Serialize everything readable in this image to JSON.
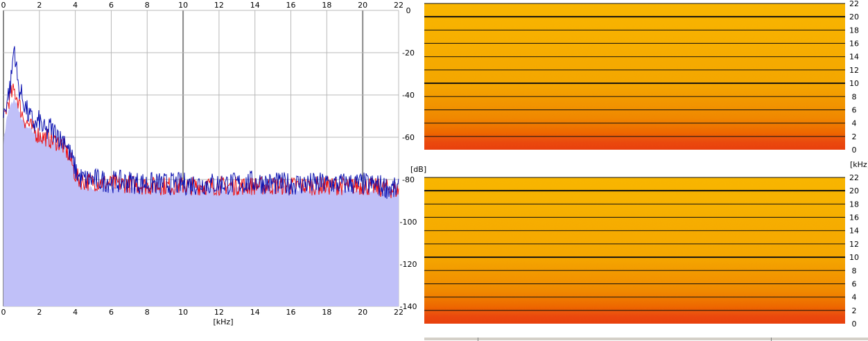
{
  "chart_data": [
    {
      "type": "area",
      "xlabel": "[kHz]",
      "ylabel": "[dB]",
      "xlim": [
        0,
        22
      ],
      "ylim": [
        -140,
        0
      ],
      "x_ticks": [
        "0",
        "2",
        "4",
        "6",
        "8",
        "10",
        "12",
        "14",
        "16",
        "18",
        "20",
        "22"
      ],
      "y_ticks": [
        "0",
        "-20",
        "-40",
        "-60",
        "-80",
        "-100",
        "-120",
        "-140"
      ],
      "grid": true,
      "colors": {
        "fill": "#c0c0f8",
        "series_a": "#ee1010",
        "series_b": "#0a10b0",
        "grid": "#b8b8b8"
      },
      "series": [
        {
          "x": [
            0,
            0.2,
            0.4,
            0.6,
            0.8,
            1.0,
            1.2,
            1.4,
            1.6,
            1.8,
            2.0,
            2.2,
            2.4,
            2.6,
            2.8,
            3.0,
            3.2,
            3.4,
            3.6,
            3.8,
            4.0,
            4.2,
            4.5,
            5,
            6,
            7,
            8,
            9,
            10,
            11,
            12,
            13,
            14,
            15,
            16,
            17,
            18,
            19,
            20,
            21,
            22
          ],
          "y": [
            -52,
            -45,
            -40,
            -38,
            -42,
            -48,
            -52,
            -54,
            -56,
            -58,
            -59,
            -60,
            -60,
            -61,
            -62,
            -62,
            -63,
            -65,
            -68,
            -72,
            -78,
            -80,
            -81,
            -81,
            -82,
            -82,
            -83,
            -83,
            -83,
            -83,
            -83,
            -83,
            -83,
            -83,
            -83,
            -83,
            -83,
            -83,
            -83,
            -84,
            -85
          ]
        },
        {
          "x": [
            0,
            0.2,
            0.4,
            0.6,
            0.8,
            1.0,
            1.2,
            1.4,
            1.6,
            1.8,
            2.0,
            2.2,
            2.4,
            2.6,
            2.8,
            3.0,
            3.2,
            3.4,
            3.6,
            3.8,
            4.0,
            4.2,
            4.5,
            5,
            6,
            7,
            8,
            9,
            10,
            11,
            12,
            13,
            14,
            15,
            16,
            17,
            18,
            19,
            20,
            21,
            22
          ],
          "y": [
            -50,
            -42,
            -35,
            -16,
            -35,
            -40,
            -45,
            -50,
            -52,
            -55,
            -52,
            -56,
            -58,
            -55,
            -58,
            -57,
            -62,
            -60,
            -66,
            -70,
            -75,
            -79,
            -80,
            -80,
            -81,
            -81,
            -82,
            -82,
            -82,
            -82,
            -82,
            -82,
            -81,
            -82,
            -82,
            -82,
            -82,
            -82,
            -82,
            -83,
            -85
          ]
        }
      ],
      "fill_envelope": {
        "x": [
          0,
          0.2,
          0.4,
          0.6,
          0.8,
          1.0,
          1.5,
          2.0,
          2.5,
          3.0,
          3.5,
          4.0,
          4.2,
          5,
          8,
          12,
          16,
          20,
          22
        ],
        "y": [
          -62,
          -50,
          -45,
          -42,
          -45,
          -52,
          -56,
          -59,
          -61,
          -63,
          -66,
          -72,
          -83,
          -84,
          -84,
          -84,
          -84,
          -85,
          -86
        ]
      }
    },
    {
      "type": "heatmap",
      "ylabel": "[kHz]",
      "ylim": [
        0,
        22
      ],
      "y_ticks": [
        "22",
        "20",
        "18",
        "16",
        "14",
        "12",
        "10",
        "8",
        "6",
        "4",
        "2",
        "0"
      ],
      "colors": {
        "high_freq": "#f7b400",
        "mid_freq": "#f3a000",
        "low_freq": "#ee4f08",
        "bottom_band": "#e83010"
      }
    },
    {
      "type": "heatmap",
      "ylabel": "[kHz]",
      "ylim": [
        0,
        22
      ],
      "y_ticks": [
        "22",
        "20",
        "18",
        "16",
        "14",
        "12",
        "10",
        "8",
        "6",
        "4",
        "2",
        "0"
      ],
      "colors": {
        "high_freq": "#f7b400",
        "mid_freq": "#f3a000",
        "low_freq": "#ee4f08",
        "bottom_band": "#e83010"
      }
    }
  ]
}
